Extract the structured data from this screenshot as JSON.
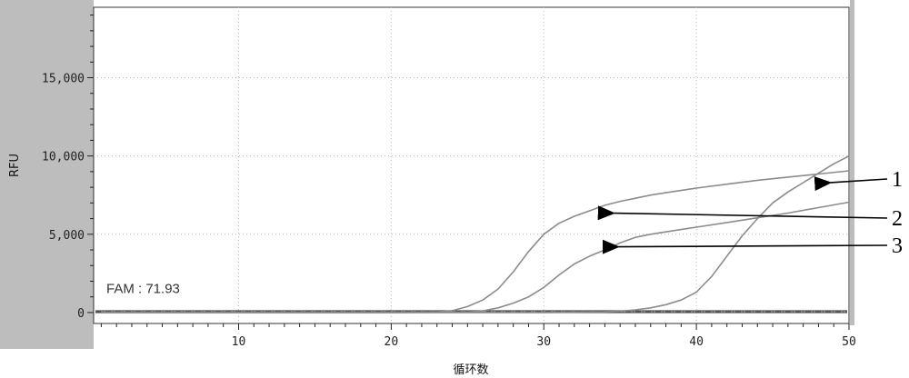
{
  "chart_data": {
    "type": "line",
    "xlabel": "循环数",
    "ylabel": "RFU",
    "xlim": [
      0.5,
      50
    ],
    "ylim": [
      -700,
      19500
    ],
    "xticks": [
      10,
      20,
      30,
      40,
      50
    ],
    "xtick_labels": [
      "10",
      "20",
      "30",
      "40",
      "50"
    ],
    "yticks": [
      0,
      5000,
      10000,
      15000
    ],
    "ytick_labels": [
      "0",
      "5,000",
      "10,000",
      "15,000"
    ],
    "grid": true,
    "threshold": {
      "label": "FAM : 71.93",
      "value": 71.93
    },
    "series": [
      {
        "x": [
          1,
          10,
          20,
          23,
          24,
          25,
          26,
          27,
          28,
          29,
          30,
          31,
          32,
          33,
          34,
          35,
          36,
          37,
          38,
          39,
          40,
          42,
          44,
          46,
          48,
          50
        ],
        "values": [
          0,
          0,
          0,
          30,
          120,
          380,
          800,
          1500,
          2600,
          3900,
          5000,
          5700,
          6150,
          6500,
          6850,
          7100,
          7300,
          7500,
          7650,
          7800,
          7950,
          8200,
          8450,
          8650,
          8850,
          9050
        ]
      },
      {
        "x": [
          1,
          10,
          20,
          25,
          26,
          27,
          28,
          29,
          30,
          31,
          32,
          33,
          34,
          35,
          36,
          37,
          38,
          39,
          40,
          42,
          44,
          46,
          48,
          50
        ],
        "values": [
          0,
          0,
          0,
          20,
          100,
          300,
          600,
          1000,
          1600,
          2400,
          3100,
          3600,
          4000,
          4450,
          4800,
          5000,
          5150,
          5300,
          5450,
          5750,
          6050,
          6350,
          6700,
          7050
        ]
      },
      {
        "x": [
          1,
          10,
          20,
          30,
          34,
          35,
          36,
          37,
          38,
          39,
          40,
          41,
          42,
          43,
          44,
          45,
          46,
          47,
          48,
          49,
          50
        ],
        "values": [
          0,
          0,
          0,
          0,
          40,
          90,
          170,
          300,
          500,
          800,
          1300,
          2300,
          3600,
          4900,
          6000,
          7000,
          7700,
          8300,
          8900,
          9500,
          10000
        ]
      }
    ],
    "baselines": [
      0,
      50,
      110
    ],
    "annotations": [
      {
        "label": "1",
        "series_index": 2,
        "point": [
          48.2,
          8300
        ]
      },
      {
        "label": "2",
        "series_index": 0,
        "point": [
          34.0,
          6350
        ]
      },
      {
        "label": "3",
        "series_index": 1,
        "point": [
          34.3,
          4200
        ]
      }
    ],
    "colors": {
      "plot_background": "#ffffff",
      "side_panel": "#bdbdbd",
      "grid": "#b8b8b8",
      "curve": "#8c8c8c",
      "baseline": "#555555",
      "arrow": "#000000"
    }
  }
}
